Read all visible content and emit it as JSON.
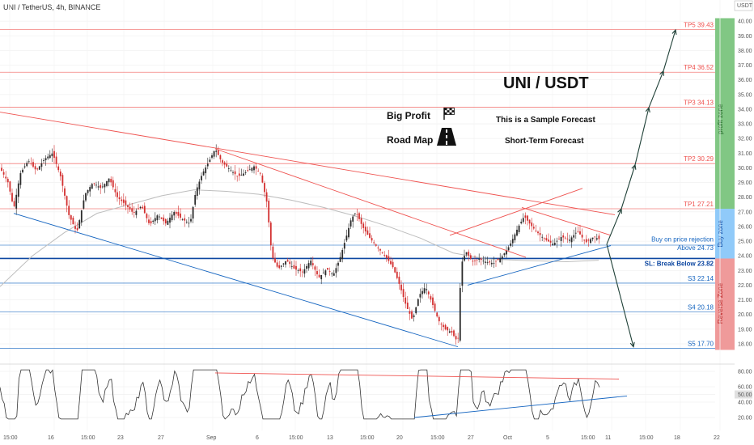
{
  "header": {
    "title": "UNI / TetherUS, 4h, BINANCE",
    "currency": "USDT"
  },
  "annotations": {
    "pair": "UNI / USDT",
    "big_profit": "Big Profit",
    "road_map": "Road Map",
    "sample": "This is a Sample Forecast",
    "short_term": "Short-Term Forecast",
    "profit_zone": "profit zone",
    "buy_zone": "Buy zone",
    "reverse_zone": "Reverse Zone"
  },
  "colors": {
    "resistance": "#ef5350",
    "support": "#1565c0",
    "candle_up": "#2a2a2a",
    "candle_down": "#d32f2f",
    "ma": "#bdbdbd",
    "profit_zone": "#81c784",
    "buy_zone": "#90caf9",
    "reverse_zone": "#ef9a9a",
    "rsi": "#333333"
  },
  "chart_data": {
    "type": "candlestick",
    "symbol": "UNI / TetherUS",
    "timeframe": "4h",
    "exchange": "BINANCE",
    "y_ticks": [
      18.0,
      19.0,
      20.0,
      21.0,
      22.0,
      23.0,
      24.0,
      25.0,
      26.0,
      27.0,
      28.0,
      29.0,
      30.0,
      31.0,
      32.0,
      33.0,
      34.0,
      35.0,
      36.0,
      37.0,
      38.0,
      39.0,
      40.0
    ],
    "x_ticks": [
      "15:00",
      "16",
      "15:00",
      "23",
      "27",
      "Sep",
      "6",
      "15:00",
      "13",
      "15:00",
      "20",
      "15:00",
      "27",
      "Oct",
      "5",
      "15:00",
      "11",
      "15:00",
      "18",
      "22"
    ],
    "levels": [
      {
        "label": "TP5 39.43",
        "value": 39.43,
        "kind": "tp"
      },
      {
        "label": "TP4 36.52",
        "value": 36.52,
        "kind": "tp"
      },
      {
        "label": "TP3 34.13",
        "value": 34.13,
        "kind": "tp"
      },
      {
        "label": "TP2 30.29",
        "value": 30.29,
        "kind": "tp"
      },
      {
        "label": "TP1 27.21",
        "value": 27.21,
        "kind": "tp"
      },
      {
        "label": "Buy on price rejection",
        "value": 24.8,
        "kind": "buy"
      },
      {
        "label": "Above 24.73",
        "value": 24.73,
        "kind": "buy"
      },
      {
        "label": "SL: Break Below 23.82",
        "value": 23.82,
        "kind": "sl"
      },
      {
        "label": "S3 22.14",
        "value": 22.14,
        "kind": "s"
      },
      {
        "label": "S4 20.18",
        "value": 20.18,
        "kind": "s"
      },
      {
        "label": "S5 17.70",
        "value": 17.7,
        "kind": "s"
      }
    ],
    "price_path": [
      [
        0,
        30.0
      ],
      [
        10,
        29.0
      ],
      [
        17,
        27.2
      ],
      [
        25,
        29.6
      ],
      [
        35,
        30.5
      ],
      [
        45,
        29.8
      ],
      [
        55,
        30.6
      ],
      [
        65,
        31.0
      ],
      [
        75,
        29.4
      ],
      [
        85,
        26.8
      ],
      [
        95,
        25.6
      ],
      [
        105,
        28.2
      ],
      [
        115,
        29.0
      ],
      [
        125,
        28.6
      ],
      [
        135,
        29.3
      ],
      [
        145,
        28.0
      ],
      [
        155,
        27.5
      ],
      [
        165,
        26.9
      ],
      [
        175,
        27.4
      ],
      [
        185,
        26.1
      ],
      [
        195,
        26.8
      ],
      [
        205,
        26.2
      ],
      [
        215,
        27.0
      ],
      [
        225,
        26.5
      ],
      [
        235,
        26.2
      ],
      [
        242,
        28.4
      ],
      [
        250,
        29.6
      ],
      [
        258,
        30.4
      ],
      [
        266,
        31.3
      ],
      [
        274,
        30.4
      ],
      [
        284,
        29.9
      ],
      [
        294,
        29.4
      ],
      [
        304,
        29.7
      ],
      [
        314,
        30.1
      ],
      [
        322,
        29.6
      ],
      [
        330,
        27.6
      ],
      [
        336,
        24.0
      ],
      [
        344,
        23.1
      ],
      [
        354,
        23.7
      ],
      [
        364,
        23.1
      ],
      [
        374,
        22.9
      ],
      [
        384,
        23.7
      ],
      [
        394,
        22.5
      ],
      [
        404,
        23.1
      ],
      [
        412,
        22.7
      ],
      [
        420,
        23.8
      ],
      [
        428,
        25.3
      ],
      [
        434,
        26.5
      ],
      [
        440,
        27.0
      ],
      [
        448,
        26.0
      ],
      [
        456,
        25.3
      ],
      [
        466,
        24.6
      ],
      [
        476,
        24.0
      ],
      [
        486,
        23.2
      ],
      [
        494,
        22.0
      ],
      [
        502,
        20.6
      ],
      [
        510,
        19.6
      ],
      [
        518,
        21.3
      ],
      [
        526,
        21.9
      ],
      [
        534,
        20.8
      ],
      [
        542,
        19.6
      ],
      [
        550,
        19.0
      ],
      [
        558,
        18.8
      ],
      [
        566,
        18.1
      ],
      [
        570,
        23.4
      ],
      [
        576,
        24.3
      ],
      [
        584,
        23.6
      ],
      [
        592,
        23.8
      ],
      [
        600,
        23.6
      ],
      [
        610,
        23.5
      ],
      [
        620,
        23.9
      ],
      [
        630,
        24.7
      ],
      [
        640,
        25.9
      ],
      [
        648,
        26.7
      ],
      [
        656,
        26.1
      ],
      [
        664,
        25.6
      ],
      [
        674,
        25.1
      ],
      [
        684,
        24.8
      ],
      [
        694,
        25.3
      ],
      [
        704,
        25.1
      ],
      [
        714,
        25.7
      ],
      [
        724,
        24.9
      ],
      [
        734,
        25.3
      ],
      [
        742,
        25.1
      ]
    ],
    "moving_average": [
      [
        0,
        21.9
      ],
      [
        40,
        24.0
      ],
      [
        80,
        25.6
      ],
      [
        120,
        26.9
      ],
      [
        160,
        27.5
      ],
      [
        200,
        28.1
      ],
      [
        240,
        28.5
      ],
      [
        280,
        28.4
      ],
      [
        320,
        28.2
      ],
      [
        360,
        27.8
      ],
      [
        400,
        27.3
      ],
      [
        440,
        26.7
      ],
      [
        480,
        26.0
      ],
      [
        520,
        25.2
      ],
      [
        560,
        24.2
      ],
      [
        600,
        23.8
      ],
      [
        640,
        23.7
      ],
      [
        700,
        23.6
      ],
      [
        740,
        23.7
      ]
    ],
    "trendlines": [
      {
        "kind": "resistance",
        "from": [
          0,
          33.8
        ],
        "to": [
          760,
          26.8
        ]
      },
      {
        "kind": "resistance",
        "from": [
          266,
          31.3
        ],
        "to": [
          650,
          23.9
        ]
      },
      {
        "kind": "resistance",
        "from": [
          556,
          25.4
        ],
        "to": [
          720,
          28.6
        ]
      },
      {
        "kind": "resistance",
        "from": [
          645,
          27.3
        ],
        "to": [
          755,
          25.4
        ]
      },
      {
        "kind": "support",
        "from": [
          17,
          26.9
        ],
        "to": [
          566,
          17.8
        ]
      },
      {
        "kind": "support",
        "from": [
          578,
          22.0
        ],
        "to": [
          755,
          24.7
        ]
      }
    ],
    "forecast_up": [
      [
        750,
        24.8
      ],
      [
        768,
        27.2
      ],
      [
        785,
        30.2
      ],
      [
        802,
        34.1
      ],
      [
        820,
        36.6
      ],
      [
        835,
        39.4
      ]
    ],
    "forecast_down": [
      [
        750,
        24.8
      ],
      [
        783,
        17.8
      ]
    ],
    "rsi": {
      "ticks": [
        20.0,
        40.0,
        50.0,
        60.0,
        80.0
      ],
      "current": 50.0,
      "resistance_line": {
        "from": [
          266,
          78
        ],
        "to": [
          765,
          70
        ]
      },
      "support_line": {
        "from": [
          512,
          20
        ],
        "to": [
          775,
          48
        ]
      }
    }
  }
}
